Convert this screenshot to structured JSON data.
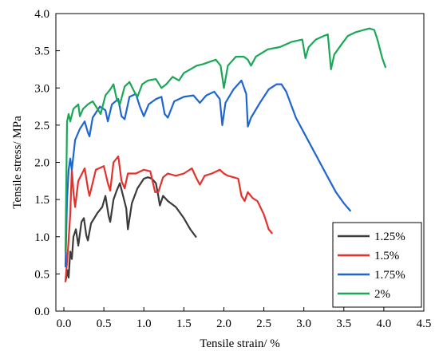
{
  "chart_data": {
    "type": "line",
    "title": "",
    "xlabel": "Tensile strain/ %",
    "ylabel": "Tensile stress/ MPa",
    "xlim": [
      -0.1,
      4.5
    ],
    "ylim": [
      0.0,
      4.0
    ],
    "x_ticks": [
      "0.0",
      "0.5",
      "1.0",
      "1.5",
      "2.0",
      "2.5",
      "3.0",
      "3.5",
      "4.0",
      "4.5"
    ],
    "y_ticks": [
      "0.0",
      "0.5",
      "1.0",
      "1.5",
      "2.0",
      "2.5",
      "3.0",
      "3.5",
      "4.0"
    ],
    "grid": false,
    "legend_position": "bottom-right",
    "series": [
      {
        "name": "1.25%",
        "color": "#3b3b3b",
        "points": [
          [
            0.02,
            0.4
          ],
          [
            0.05,
            0.55
          ],
          [
            0.06,
            0.45
          ],
          [
            0.08,
            0.8
          ],
          [
            0.1,
            0.7
          ],
          [
            0.12,
            1.0
          ],
          [
            0.15,
            1.1
          ],
          [
            0.18,
            0.88
          ],
          [
            0.22,
            1.2
          ],
          [
            0.25,
            1.25
          ],
          [
            0.28,
            1.02
          ],
          [
            0.3,
            0.95
          ],
          [
            0.34,
            1.18
          ],
          [
            0.42,
            1.32
          ],
          [
            0.48,
            1.4
          ],
          [
            0.52,
            1.55
          ],
          [
            0.56,
            1.28
          ],
          [
            0.58,
            1.2
          ],
          [
            0.62,
            1.5
          ],
          [
            0.66,
            1.62
          ],
          [
            0.7,
            1.72
          ],
          [
            0.74,
            1.55
          ],
          [
            0.78,
            1.38
          ],
          [
            0.8,
            1.1
          ],
          [
            0.85,
            1.45
          ],
          [
            0.92,
            1.65
          ],
          [
            1.0,
            1.78
          ],
          [
            1.05,
            1.8
          ],
          [
            1.1,
            1.78
          ],
          [
            1.15,
            1.72
          ],
          [
            1.18,
            1.55
          ],
          [
            1.2,
            1.42
          ],
          [
            1.24,
            1.55
          ],
          [
            1.3,
            1.48
          ],
          [
            1.4,
            1.4
          ],
          [
            1.5,
            1.25
          ],
          [
            1.58,
            1.1
          ],
          [
            1.65,
            1.0
          ]
        ]
      },
      {
        "name": "1.5%",
        "color": "#e5312b",
        "points": [
          [
            0.02,
            0.4
          ],
          [
            0.05,
            0.8
          ],
          [
            0.08,
            1.3
          ],
          [
            0.1,
            1.9
          ],
          [
            0.12,
            1.6
          ],
          [
            0.14,
            1.4
          ],
          [
            0.18,
            1.75
          ],
          [
            0.26,
            1.92
          ],
          [
            0.3,
            1.65
          ],
          [
            0.32,
            1.55
          ],
          [
            0.4,
            1.9
          ],
          [
            0.5,
            1.95
          ],
          [
            0.55,
            1.72
          ],
          [
            0.58,
            1.62
          ],
          [
            0.62,
            2.0
          ],
          [
            0.68,
            2.08
          ],
          [
            0.72,
            1.75
          ],
          [
            0.76,
            1.65
          ],
          [
            0.8,
            1.85
          ],
          [
            0.9,
            1.85
          ],
          [
            1.0,
            1.9
          ],
          [
            1.08,
            1.88
          ],
          [
            1.14,
            1.6
          ],
          [
            1.18,
            1.6
          ],
          [
            1.24,
            1.8
          ],
          [
            1.3,
            1.85
          ],
          [
            1.4,
            1.82
          ],
          [
            1.5,
            1.85
          ],
          [
            1.6,
            1.92
          ],
          [
            1.66,
            1.78
          ],
          [
            1.7,
            1.7
          ],
          [
            1.76,
            1.82
          ],
          [
            1.85,
            1.85
          ],
          [
            1.95,
            1.9
          ],
          [
            2.0,
            1.85
          ],
          [
            2.05,
            1.82
          ],
          [
            2.12,
            1.8
          ],
          [
            2.18,
            1.78
          ],
          [
            2.22,
            1.55
          ],
          [
            2.26,
            1.48
          ],
          [
            2.3,
            1.6
          ],
          [
            2.36,
            1.52
          ],
          [
            2.42,
            1.48
          ],
          [
            2.5,
            1.3
          ],
          [
            2.56,
            1.1
          ],
          [
            2.6,
            1.05
          ]
        ]
      },
      {
        "name": "1.75%",
        "color": "#1f66d1",
        "points": [
          [
            0.02,
            0.6
          ],
          [
            0.04,
            1.5
          ],
          [
            0.06,
            1.9
          ],
          [
            0.08,
            2.05
          ],
          [
            0.1,
            1.9
          ],
          [
            0.14,
            2.3
          ],
          [
            0.2,
            2.45
          ],
          [
            0.26,
            2.55
          ],
          [
            0.3,
            2.4
          ],
          [
            0.32,
            2.35
          ],
          [
            0.36,
            2.6
          ],
          [
            0.45,
            2.75
          ],
          [
            0.52,
            2.7
          ],
          [
            0.55,
            2.55
          ],
          [
            0.6,
            2.78
          ],
          [
            0.68,
            2.85
          ],
          [
            0.72,
            2.62
          ],
          [
            0.76,
            2.58
          ],
          [
            0.82,
            2.88
          ],
          [
            0.9,
            2.92
          ],
          [
            0.95,
            2.75
          ],
          [
            1.0,
            2.62
          ],
          [
            1.06,
            2.78
          ],
          [
            1.15,
            2.85
          ],
          [
            1.22,
            2.88
          ],
          [
            1.26,
            2.65
          ],
          [
            1.3,
            2.6
          ],
          [
            1.38,
            2.82
          ],
          [
            1.5,
            2.88
          ],
          [
            1.62,
            2.9
          ],
          [
            1.7,
            2.8
          ],
          [
            1.78,
            2.9
          ],
          [
            1.88,
            2.95
          ],
          [
            1.95,
            2.85
          ],
          [
            1.98,
            2.5
          ],
          [
            2.02,
            2.8
          ],
          [
            2.12,
            2.98
          ],
          [
            2.22,
            3.1
          ],
          [
            2.28,
            2.92
          ],
          [
            2.3,
            2.48
          ],
          [
            2.34,
            2.6
          ],
          [
            2.45,
            2.8
          ],
          [
            2.56,
            2.98
          ],
          [
            2.66,
            3.05
          ],
          [
            2.72,
            3.05
          ],
          [
            2.78,
            2.95
          ],
          [
            2.9,
            2.6
          ],
          [
            3.0,
            2.4
          ],
          [
            3.1,
            2.2
          ],
          [
            3.2,
            2.0
          ],
          [
            3.3,
            1.8
          ],
          [
            3.4,
            1.6
          ],
          [
            3.5,
            1.45
          ],
          [
            3.58,
            1.35
          ]
        ]
      },
      {
        "name": "2%",
        "color": "#1aa856",
        "points": [
          [
            0.02,
            0.8
          ],
          [
            0.04,
            2.55
          ],
          [
            0.06,
            2.65
          ],
          [
            0.08,
            2.55
          ],
          [
            0.12,
            2.72
          ],
          [
            0.18,
            2.78
          ],
          [
            0.2,
            2.62
          ],
          [
            0.24,
            2.72
          ],
          [
            0.3,
            2.78
          ],
          [
            0.36,
            2.82
          ],
          [
            0.42,
            2.72
          ],
          [
            0.46,
            2.65
          ],
          [
            0.52,
            2.9
          ],
          [
            0.58,
            2.98
          ],
          [
            0.62,
            3.05
          ],
          [
            0.66,
            2.85
          ],
          [
            0.7,
            2.78
          ],
          [
            0.76,
            3.02
          ],
          [
            0.82,
            3.08
          ],
          [
            0.88,
            2.95
          ],
          [
            0.92,
            2.88
          ],
          [
            0.98,
            3.05
          ],
          [
            1.05,
            3.1
          ],
          [
            1.15,
            3.12
          ],
          [
            1.22,
            3.0
          ],
          [
            1.28,
            3.05
          ],
          [
            1.36,
            3.15
          ],
          [
            1.44,
            3.1
          ],
          [
            1.5,
            3.2
          ],
          [
            1.58,
            3.25
          ],
          [
            1.66,
            3.3
          ],
          [
            1.74,
            3.32
          ],
          [
            1.82,
            3.35
          ],
          [
            1.9,
            3.38
          ],
          [
            1.96,
            3.3
          ],
          [
            2.0,
            3.0
          ],
          [
            2.05,
            3.3
          ],
          [
            2.15,
            3.42
          ],
          [
            2.25,
            3.42
          ],
          [
            2.3,
            3.38
          ],
          [
            2.34,
            3.3
          ],
          [
            2.4,
            3.42
          ],
          [
            2.55,
            3.52
          ],
          [
            2.7,
            3.55
          ],
          [
            2.85,
            3.62
          ],
          [
            2.98,
            3.65
          ],
          [
            3.02,
            3.4
          ],
          [
            3.06,
            3.55
          ],
          [
            3.15,
            3.65
          ],
          [
            3.25,
            3.7
          ],
          [
            3.3,
            3.72
          ],
          [
            3.34,
            3.25
          ],
          [
            3.38,
            3.45
          ],
          [
            3.48,
            3.6
          ],
          [
            3.55,
            3.7
          ],
          [
            3.65,
            3.75
          ],
          [
            3.75,
            3.78
          ],
          [
            3.82,
            3.8
          ],
          [
            3.88,
            3.78
          ],
          [
            3.92,
            3.65
          ],
          [
            3.98,
            3.4
          ],
          [
            4.02,
            3.28
          ]
        ]
      }
    ]
  }
}
